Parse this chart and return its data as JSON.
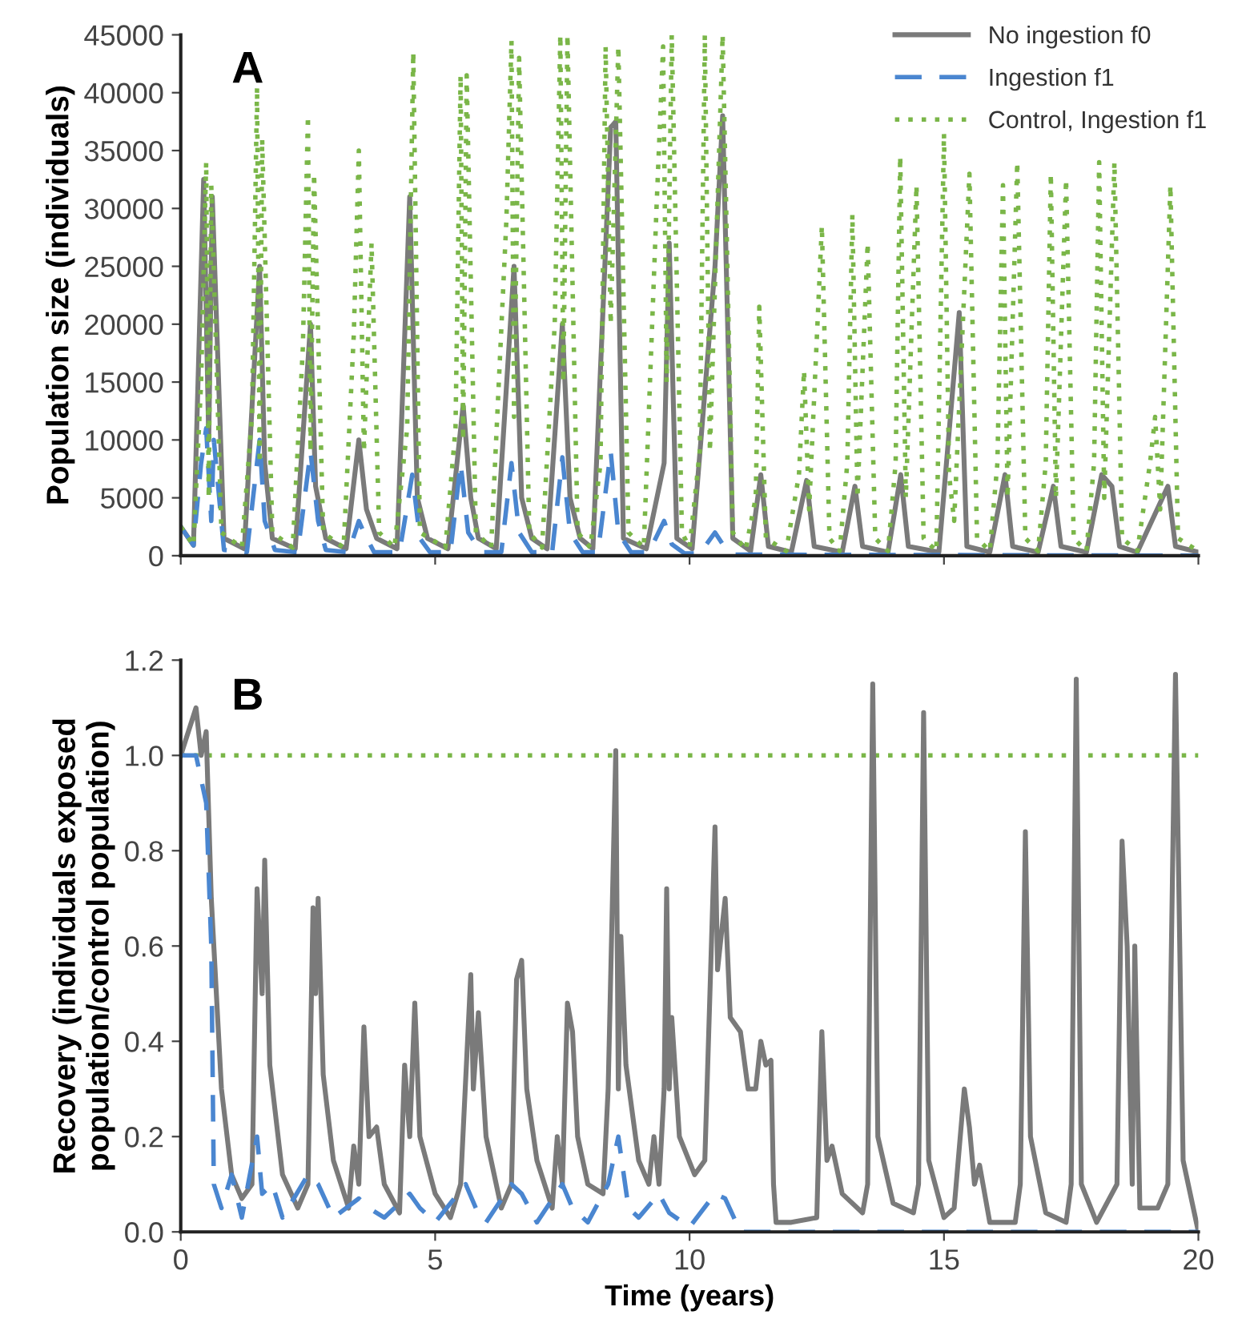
{
  "chart_data": [
    {
      "type": "line",
      "ylabel": "Population size (individuals)",
      "annotations": [
        "A"
      ],
      "xlim": [
        0,
        20
      ],
      "xticks": [
        0,
        5,
        10,
        15,
        20
      ],
      "ylim": [
        0,
        45000
      ],
      "yticks": [
        0,
        5000,
        10000,
        15000,
        20000,
        25000,
        30000,
        35000,
        40000,
        45000
      ],
      "tick_labels": "y",
      "grid": false,
      "legend": "top right",
      "series": [
        {
          "name": "No ingestion f0",
          "color": "#7a7a7a",
          "line_style": "solid",
          "x": [
            0,
            0.25,
            0.45,
            0.55,
            0.62,
            0.85,
            1.25,
            1.55,
            1.65,
            1.8,
            2.25,
            2.55,
            2.65,
            2.85,
            3.25,
            3.5,
            3.65,
            3.85,
            4.25,
            4.5,
            4.65,
            4.85,
            5.25,
            5.55,
            5.7,
            5.85,
            6.2,
            6.55,
            6.7,
            6.9,
            7.2,
            7.5,
            7.65,
            7.85,
            8.1,
            8.45,
            8.55,
            8.7,
            9.15,
            9.5,
            9.6,
            9.75,
            10.05,
            10.5,
            10.65,
            10.85,
            11.2,
            11.4,
            11.55,
            12.0,
            12.3,
            12.45,
            13.0,
            13.25,
            13.4,
            13.9,
            14.15,
            14.3,
            14.9,
            15.3,
            15.45,
            15.9,
            16.2,
            16.35,
            16.85,
            17.15,
            17.3,
            17.8,
            18.1,
            18.3,
            18.45,
            18.8,
            19.4,
            19.55,
            20
          ],
          "values": [
            2500,
            900,
            32500,
            10000,
            31000,
            1500,
            600,
            25000,
            8000,
            1500,
            600,
            20000,
            6000,
            1500,
            600,
            10000,
            4000,
            1500,
            600,
            31000,
            5000,
            1500,
            600,
            13000,
            5000,
            1500,
            600,
            25000,
            5000,
            1500,
            600,
            20000,
            5000,
            1500,
            600,
            37000,
            37500,
            1500,
            600,
            8000,
            27000,
            1500,
            600,
            25000,
            38000,
            1500,
            400,
            7000,
            800,
            300,
            6500,
            800,
            300,
            6000,
            800,
            300,
            7000,
            800,
            300,
            21000,
            800,
            300,
            7000,
            800,
            300,
            6000,
            800,
            300,
            7000,
            6000,
            800,
            300,
            6000,
            800,
            300
          ]
        },
        {
          "name": "Ingestion f1",
          "color": "#4a86d0",
          "line_style": "dashed",
          "x": [
            0,
            0.25,
            0.4,
            0.5,
            0.6,
            0.65,
            0.85,
            1.3,
            1.55,
            1.65,
            1.85,
            2.3,
            2.55,
            2.7,
            2.85,
            3.3,
            3.5,
            3.6,
            3.8,
            4.3,
            4.55,
            4.7,
            4.9,
            5.3,
            5.5,
            5.65,
            5.9,
            6.3,
            6.5,
            6.65,
            6.9,
            7.3,
            7.5,
            7.65,
            7.9,
            8.2,
            8.45,
            8.6,
            8.85,
            9.2,
            9.5,
            9.65,
            9.9,
            10.2,
            10.5,
            10.65,
            10.9,
            20
          ],
          "values": [
            2500,
            900,
            8000,
            11000,
            3000,
            10000,
            500,
            300,
            10000,
            3000,
            500,
            300,
            9000,
            3000,
            500,
            300,
            3000,
            2000,
            300,
            300,
            7000,
            1500,
            300,
            300,
            8000,
            2000,
            300,
            300,
            8000,
            2000,
            300,
            300,
            8500,
            2000,
            300,
            300,
            9000,
            2000,
            300,
            300,
            3000,
            1000,
            200,
            200,
            2000,
            1000,
            100,
            0
          ]
        },
        {
          "name": "Control, Ingestion f1",
          "color": "#7ab648",
          "line_style": "dotted",
          "x": [
            0,
            0.25,
            0.4,
            0.5,
            0.55,
            0.6,
            0.8,
            1.2,
            1.4,
            1.5,
            1.55,
            1.6,
            1.8,
            2.2,
            2.4,
            2.5,
            2.55,
            2.62,
            2.8,
            3.2,
            3.4,
            3.5,
            3.6,
            3.75,
            3.9,
            4.2,
            4.45,
            4.57,
            4.7,
            5.2,
            5.4,
            5.5,
            5.55,
            5.62,
            5.8,
            6.1,
            6.4,
            6.5,
            6.55,
            6.65,
            6.85,
            7.1,
            7.35,
            7.46,
            7.52,
            7.6,
            7.8,
            8.05,
            8.25,
            8.35,
            8.45,
            8.6,
            8.8,
            9.1,
            9.35,
            9.48,
            9.55,
            9.65,
            9.85,
            10.0,
            10.2,
            10.3,
            10.4,
            10.65,
            10.85,
            11.1,
            11.3,
            11.37,
            11.5,
            11.9,
            12.15,
            12.25,
            12.35,
            12.6,
            12.75,
            12.95,
            13.1,
            13.2,
            13.3,
            13.5,
            13.65,
            13.9,
            14.05,
            14.14,
            14.25,
            14.46,
            14.6,
            14.85,
            15.0,
            15.1,
            15.2,
            15.5,
            15.65,
            15.9,
            16.05,
            16.16,
            16.25,
            16.44,
            16.6,
            16.85,
            17.0,
            17.1,
            17.2,
            17.4,
            17.55,
            17.8,
            17.95,
            18.05,
            18.15,
            18.35,
            18.5,
            18.8,
            19.05,
            19.15,
            19.25,
            19.45,
            19.6,
            20
          ],
          "values": [
            2500,
            900,
            15000,
            34000,
            5000,
            32000,
            2000,
            700,
            12000,
            40500,
            8000,
            36000,
            2000,
            700,
            18000,
            38000,
            9000,
            33000,
            2000,
            700,
            19000,
            35000,
            9000,
            27000,
            2000,
            700,
            11000,
            43500,
            2000,
            700,
            11000,
            41500,
            10000,
            41500,
            2000,
            700,
            29000,
            44500,
            12000,
            43000,
            2000,
            700,
            20000,
            45000,
            15000,
            45000,
            2000,
            700,
            8000,
            44000,
            20000,
            44000,
            2000,
            700,
            30000,
            44000,
            15000,
            45000,
            2000,
            700,
            9000,
            45000,
            9000,
            45000,
            2000,
            500,
            5000,
            21500,
            1500,
            400,
            7000,
            16000,
            4000,
            28500,
            1500,
            400,
            8000,
            29500,
            5000,
            27000,
            1500,
            400,
            8000,
            34500,
            5000,
            32000,
            1500,
            400,
            36500,
            7000,
            3000,
            33000,
            1500,
            400,
            8000,
            32000,
            5000,
            34000,
            1500,
            400,
            8000,
            33000,
            5000,
            32500,
            1500,
            400,
            8000,
            34000,
            5000,
            34000,
            1500,
            400,
            8000,
            12000,
            4000,
            32000,
            1500,
            400
          ]
        }
      ]
    },
    {
      "type": "line",
      "xlabel": "Time (years)",
      "ylabel": "Recovery (individuals exposed\npopulation/control population)",
      "annotations": [
        "B"
      ],
      "xlim": [
        0,
        20
      ],
      "xticks": [
        0,
        5,
        10,
        15,
        20
      ],
      "ylim": [
        0,
        1.2
      ],
      "yticks": [
        {
          "value": 0,
          "label": "0.0"
        },
        {
          "value": 0.2,
          "label": "0.2"
        },
        {
          "value": 0.4,
          "label": "0.4"
        },
        {
          "value": 0.6,
          "label": "0.6"
        },
        {
          "value": 0.8,
          "label": "0.8"
        },
        {
          "value": 1.0,
          "label": "1.0"
        },
        {
          "value": 1.2,
          "label": "1.2"
        }
      ],
      "grid": false,
      "series": [
        {
          "color": "#7ab648",
          "line_style": "dotted",
          "x": [
            0,
            20
          ],
          "values": [
            1.0,
            1.0
          ]
        },
        {
          "color": "#7a7a7a",
          "line_style": "solid",
          "x": [
            0,
            0.3,
            0.4,
            0.5,
            0.6,
            0.8,
            1.0,
            1.2,
            1.4,
            1.5,
            1.6,
            1.65,
            1.75,
            2.0,
            2.3,
            2.5,
            2.6,
            2.65,
            2.7,
            2.8,
            3.0,
            3.3,
            3.4,
            3.5,
            3.6,
            3.7,
            3.85,
            4.0,
            4.3,
            4.4,
            4.5,
            4.6,
            4.7,
            5.0,
            5.3,
            5.5,
            5.7,
            5.75,
            5.85,
            6.0,
            6.3,
            6.5,
            6.6,
            6.7,
            6.8,
            7.0,
            7.3,
            7.4,
            7.5,
            7.6,
            7.7,
            7.8,
            8.0,
            8.3,
            8.4,
            8.55,
            8.6,
            8.65,
            8.75,
            9.0,
            9.2,
            9.3,
            9.4,
            9.5,
            9.55,
            9.6,
            9.65,
            9.8,
            10.1,
            10.3,
            10.4,
            10.5,
            10.55,
            10.7,
            10.8,
            11.0,
            11.15,
            11.3,
            11.4,
            11.5,
            11.6,
            11.65,
            11.7,
            12.0,
            12.5,
            12.6,
            12.7,
            12.8,
            13.0,
            13.4,
            13.5,
            13.6,
            13.7,
            14.0,
            14.4,
            14.5,
            14.6,
            14.7,
            15.0,
            15.2,
            15.4,
            15.5,
            15.6,
            15.7,
            15.9,
            16.4,
            16.5,
            16.6,
            16.7,
            17.0,
            17.4,
            17.5,
            17.6,
            17.7,
            18.0,
            18.4,
            18.5,
            18.6,
            18.7,
            18.75,
            18.85,
            19.2,
            19.4,
            19.55,
            19.7,
            19.8,
            20
          ],
          "values": [
            1.0,
            1.1,
            1.0,
            1.05,
            0.7,
            0.3,
            0.12,
            0.07,
            0.1,
            0.72,
            0.5,
            0.78,
            0.35,
            0.12,
            0.05,
            0.1,
            0.68,
            0.5,
            0.7,
            0.33,
            0.15,
            0.05,
            0.18,
            0.1,
            0.43,
            0.2,
            0.22,
            0.1,
            0.04,
            0.35,
            0.2,
            0.48,
            0.2,
            0.08,
            0.03,
            0.1,
            0.54,
            0.3,
            0.46,
            0.2,
            0.05,
            0.1,
            0.53,
            0.57,
            0.3,
            0.15,
            0.05,
            0.2,
            0.1,
            0.48,
            0.42,
            0.2,
            0.1,
            0.08,
            0.3,
            1.01,
            0.3,
            0.62,
            0.35,
            0.15,
            0.1,
            0.2,
            0.1,
            0.3,
            0.72,
            0.3,
            0.45,
            0.2,
            0.12,
            0.15,
            0.5,
            0.85,
            0.55,
            0.7,
            0.45,
            0.42,
            0.3,
            0.3,
            0.4,
            0.35,
            0.36,
            0.1,
            0.02,
            0.02,
            0.03,
            0.42,
            0.15,
            0.18,
            0.08,
            0.04,
            0.1,
            1.15,
            0.2,
            0.06,
            0.04,
            0.1,
            1.09,
            0.15,
            0.03,
            0.05,
            0.3,
            0.22,
            0.1,
            0.14,
            0.02,
            0.02,
            0.1,
            0.84,
            0.2,
            0.04,
            0.02,
            0.1,
            1.16,
            0.1,
            0.02,
            0.1,
            0.82,
            0.6,
            0.1,
            0.6,
            0.05,
            0.05,
            0.1,
            1.17,
            0.15,
            0.1,
            0.0
          ]
        },
        {
          "color": "#4a86d0",
          "line_style": "dashed",
          "x": [
            0,
            0.3,
            0.5,
            0.6,
            0.65,
            0.8,
            1.0,
            1.2,
            1.5,
            1.6,
            1.8,
            2.0,
            2.5,
            2.7,
            3.0,
            3.5,
            3.7,
            4.0,
            4.5,
            4.7,
            5.0,
            5.6,
            5.8,
            6.0,
            6.5,
            6.7,
            7.0,
            7.5,
            7.7,
            8.0,
            8.4,
            8.6,
            8.8,
            9.0,
            9.4,
            9.6,
            10.0,
            10.5,
            10.7,
            11.0,
            20
          ],
          "values": [
            1.0,
            1.0,
            0.9,
            0.6,
            0.1,
            0.05,
            0.12,
            0.03,
            0.2,
            0.08,
            0.1,
            0.03,
            0.12,
            0.1,
            0.03,
            0.07,
            0.05,
            0.03,
            0.08,
            0.05,
            0.02,
            0.1,
            0.05,
            0.02,
            0.1,
            0.08,
            0.02,
            0.1,
            0.05,
            0.02,
            0.1,
            0.2,
            0.05,
            0.03,
            0.08,
            0.04,
            0.01,
            0.08,
            0.07,
            0.0,
            0.0
          ]
        }
      ]
    }
  ]
}
